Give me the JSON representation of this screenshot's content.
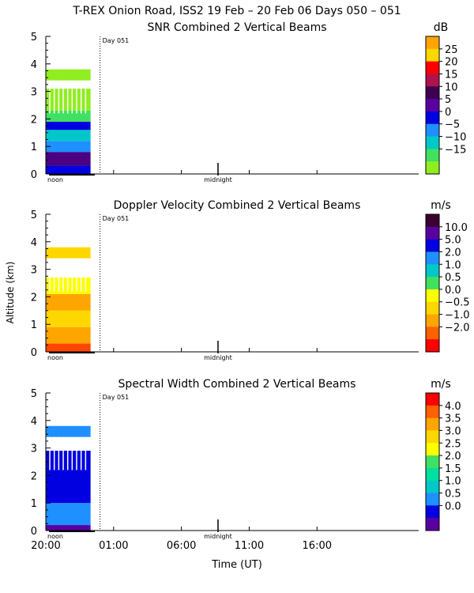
{
  "title": "T-REX Onion Road, ISS2  19 Feb – 20 Feb 06 Days 050 – 051",
  "shared": {
    "ylabel": "Altitude (km)",
    "xlabel": "Time (UT)",
    "day_marker_label": "Day 051",
    "noon_label": "noon",
    "midnight_label": "midnight",
    "xtick_labels": [
      "20:00",
      "01:00",
      "06:00",
      "11:00",
      "16:00"
    ],
    "x_range_hours_since_20UT": [
      0,
      27.5
    ],
    "xtick_hours": [
      0,
      5,
      10,
      15,
      20
    ],
    "noon_hour": 0.7,
    "midnight_hour": 12.7,
    "day_marker_hour": 4,
    "data_end_hour": 3.3
  },
  "chart_data": [
    {
      "type": "heatmap",
      "title": "SNR Combined 2 Vertical Beams",
      "unit": "dB",
      "ylim": [
        0,
        5
      ],
      "yticks": [
        "0",
        "1",
        "2",
        "3",
        "4",
        "5"
      ],
      "colorbar_labels": [
        "25",
        "20",
        "15",
        "10",
        "5",
        "0",
        "−5",
        "−10",
        "−15"
      ],
      "colorbar_colors": [
        "#ffa500",
        "#ffd700",
        "#ff0000",
        "#b0124e",
        "#3b0050",
        "#5a00a0",
        "#0000e0",
        "#1e90ff",
        "#00c8c8",
        "#40e060",
        "#90ee20"
      ],
      "layers": [
        {
          "y0": 0.0,
          "y1": 0.3,
          "color": "#0000e0"
        },
        {
          "y0": 0.3,
          "y1": 0.8,
          "color": "#4b0082"
        },
        {
          "y0": 0.8,
          "y1": 1.2,
          "color": "#1e90ff"
        },
        {
          "y0": 1.2,
          "y1": 1.6,
          "color": "#00c8c8"
        },
        {
          "y0": 1.6,
          "y1": 1.9,
          "color": "#0000e0"
        },
        {
          "y0": 1.9,
          "y1": 2.3,
          "color": "#40e060"
        },
        {
          "y0": 2.3,
          "y1": 3.1,
          "color": "#90ee20"
        },
        {
          "y0": 3.4,
          "y1": 3.8,
          "color": "#90ee20"
        }
      ]
    },
    {
      "type": "heatmap",
      "title": "Doppler Velocity Combined 2 Vertical Beams",
      "unit": "m/s",
      "ylim": [
        0,
        5
      ],
      "yticks": [
        "0",
        "1",
        "2",
        "3",
        "4",
        "5"
      ],
      "colorbar_labels": [
        "10.0",
        "5.0",
        "2.0",
        "1.0",
        "0.5",
        "0.0",
        "−0.5",
        "−1.0",
        "−2.0"
      ],
      "colorbar_colors": [
        "#3b0030",
        "#5a00a0",
        "#0000e0",
        "#1e90ff",
        "#00c8c8",
        "#40e060",
        "#ffff00",
        "#ffd700",
        "#ffa500",
        "#ff6000",
        "#ff0000"
      ],
      "layers": [
        {
          "y0": 0.0,
          "y1": 0.3,
          "color": "#ff4500"
        },
        {
          "y0": 0.3,
          "y1": 0.9,
          "color": "#ffa500"
        },
        {
          "y0": 0.9,
          "y1": 1.5,
          "color": "#ffd700"
        },
        {
          "y0": 1.5,
          "y1": 2.1,
          "color": "#ffa500"
        },
        {
          "y0": 2.1,
          "y1": 2.7,
          "color": "#ffff00"
        },
        {
          "y0": 3.4,
          "y1": 3.8,
          "color": "#ffd700"
        }
      ]
    },
    {
      "type": "heatmap",
      "title": "Spectral Width Combined 2 Vertical Beams",
      "unit": "m/s",
      "ylim": [
        0,
        5
      ],
      "yticks": [
        "0",
        "1",
        "2",
        "3",
        "4",
        "5"
      ],
      "colorbar_labels": [
        "4.0",
        "3.5",
        "3.0",
        "2.5",
        "2.0",
        "1.5",
        "1.0",
        "0.5",
        "0.0"
      ],
      "colorbar_colors": [
        "#ff0000",
        "#ff6000",
        "#ffa500",
        "#ffd700",
        "#ffff00",
        "#40e060",
        "#00e0a0",
        "#00c8c8",
        "#1e90ff",
        "#0000e0",
        "#5a00a0"
      ],
      "layers": [
        {
          "y0": 0.0,
          "y1": 0.2,
          "color": "#5a00a0"
        },
        {
          "y0": 0.2,
          "y1": 1.0,
          "color": "#1e90ff"
        },
        {
          "y0": 1.0,
          "y1": 2.2,
          "color": "#0000e0"
        },
        {
          "y0": 2.2,
          "y1": 2.9,
          "color": "#0000e0"
        },
        {
          "y0": 3.4,
          "y1": 3.8,
          "color": "#1e90ff"
        }
      ]
    }
  ]
}
